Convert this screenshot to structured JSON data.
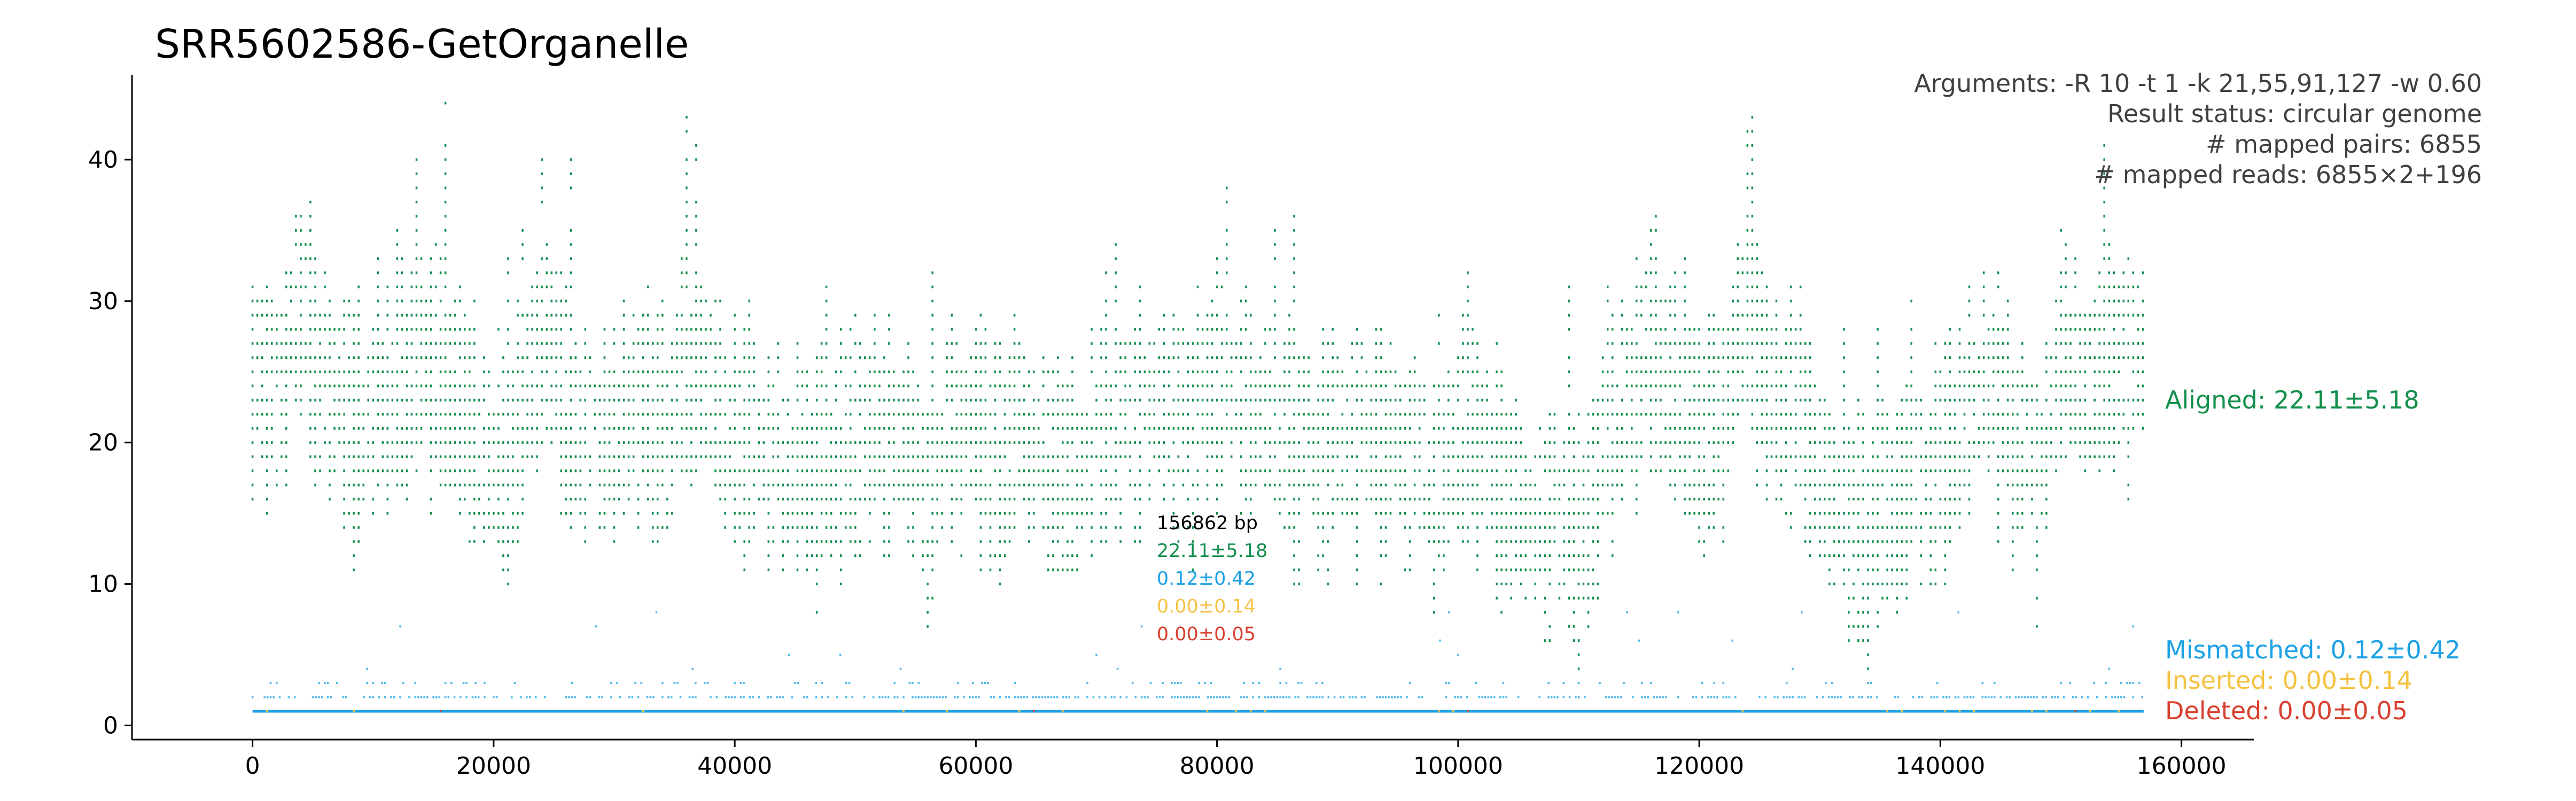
{
  "chart_data": {
    "type": "scatter",
    "title": "SRR5602586-GetOrganelle",
    "info_lines": [
      "Arguments: -R 10 -t 1 -k 21,55,91,127 -w 0.60",
      "Result status: circular genome",
      "# mapped pairs: 6855",
      "# mapped reads: 6855×2+196"
    ],
    "xlim": [
      -10000,
      166000
    ],
    "ylim": [
      -1,
      46
    ],
    "xticks": [
      0,
      20000,
      40000,
      60000,
      80000,
      100000,
      120000,
      140000,
      160000
    ],
    "xtick_labels": [
      "0",
      "20000",
      "40000",
      "60000",
      "80000",
      "100000",
      "120000",
      "140000",
      "160000"
    ],
    "yticks": [
      0,
      10,
      20,
      30,
      40
    ],
    "ytick_labels": [
      "0",
      "10",
      "20",
      "30",
      "40"
    ],
    "grid": false,
    "legend_placement": "right",
    "genome_length": 156862,
    "series": [
      {
        "name": "Aligned: 22.11±5.18",
        "color": "#138f4c",
        "mean": 22.11,
        "sd": 5.18,
        "profile_x": [
          0,
          2000,
          4000,
          6000,
          8000,
          10000,
          12000,
          14000,
          16000,
          18000,
          20000,
          22000,
          24000,
          26000,
          28000,
          30000,
          32000,
          34000,
          36000,
          38000,
          40000,
          42000,
          44000,
          46000,
          48000,
          50000,
          52000,
          54000,
          56000,
          58000,
          60000,
          62000,
          64000,
          66000,
          68000,
          70000,
          72000,
          74000,
          76000,
          78000,
          80000,
          82000,
          84000,
          86000,
          88000,
          90000,
          92000,
          94000,
          96000,
          98000,
          100000,
          102000,
          104000,
          106000,
          108000,
          110000,
          112000,
          114000,
          116000,
          118000,
          120000,
          122000,
          124000,
          126000,
          128000,
          130000,
          132000,
          134000,
          136000,
          138000,
          140000,
          142000,
          144000,
          146000,
          148000,
          150000,
          152000,
          154000,
          156000
        ],
        "profile_y": [
          26,
          24,
          30,
          25,
          22,
          23,
          24,
          27,
          26,
          22,
          19,
          21,
          28,
          24,
          21,
          22,
          23,
          22,
          26,
          25,
          21,
          21,
          19,
          18,
          19,
          20,
          22,
          21,
          17,
          22,
          21,
          20,
          21,
          19,
          18,
          20,
          22,
          23,
          24,
          21,
          25,
          24,
          22,
          21,
          20,
          21,
          22,
          21,
          19,
          18,
          21,
          20,
          17,
          15,
          16,
          14,
          19,
          22,
          28,
          24,
          20,
          23,
          30,
          23,
          24,
          18,
          15,
          14,
          16,
          18,
          20,
          22,
          25,
          21,
          18,
          27,
          26,
          27,
          26
        ]
      },
      {
        "name": "Mismatched: 0.12±0.42",
        "color": "#1aa1e6",
        "mean": 0.12,
        "sd": 0.42
      },
      {
        "name": "Inserted: 0.00±0.14",
        "color": "#f5c242",
        "mean": 0.0,
        "sd": 0.14
      },
      {
        "name": "Deleted: 0.00±0.05",
        "color": "#d9402f",
        "mean": 0.0,
        "sd": 0.05
      }
    ],
    "center_annotation": {
      "x": 75000,
      "lines": [
        {
          "text": "156862 bp",
          "color": "#000000"
        },
        {
          "text": "22.11±5.18",
          "color": "#138f4c"
        },
        {
          "text": "0.12±0.42",
          "color": "#1aa1e6"
        },
        {
          "text": "0.00±0.14",
          "color": "#f5c242"
        },
        {
          "text": "0.00±0.05",
          "color": "#d9402f"
        }
      ]
    }
  }
}
